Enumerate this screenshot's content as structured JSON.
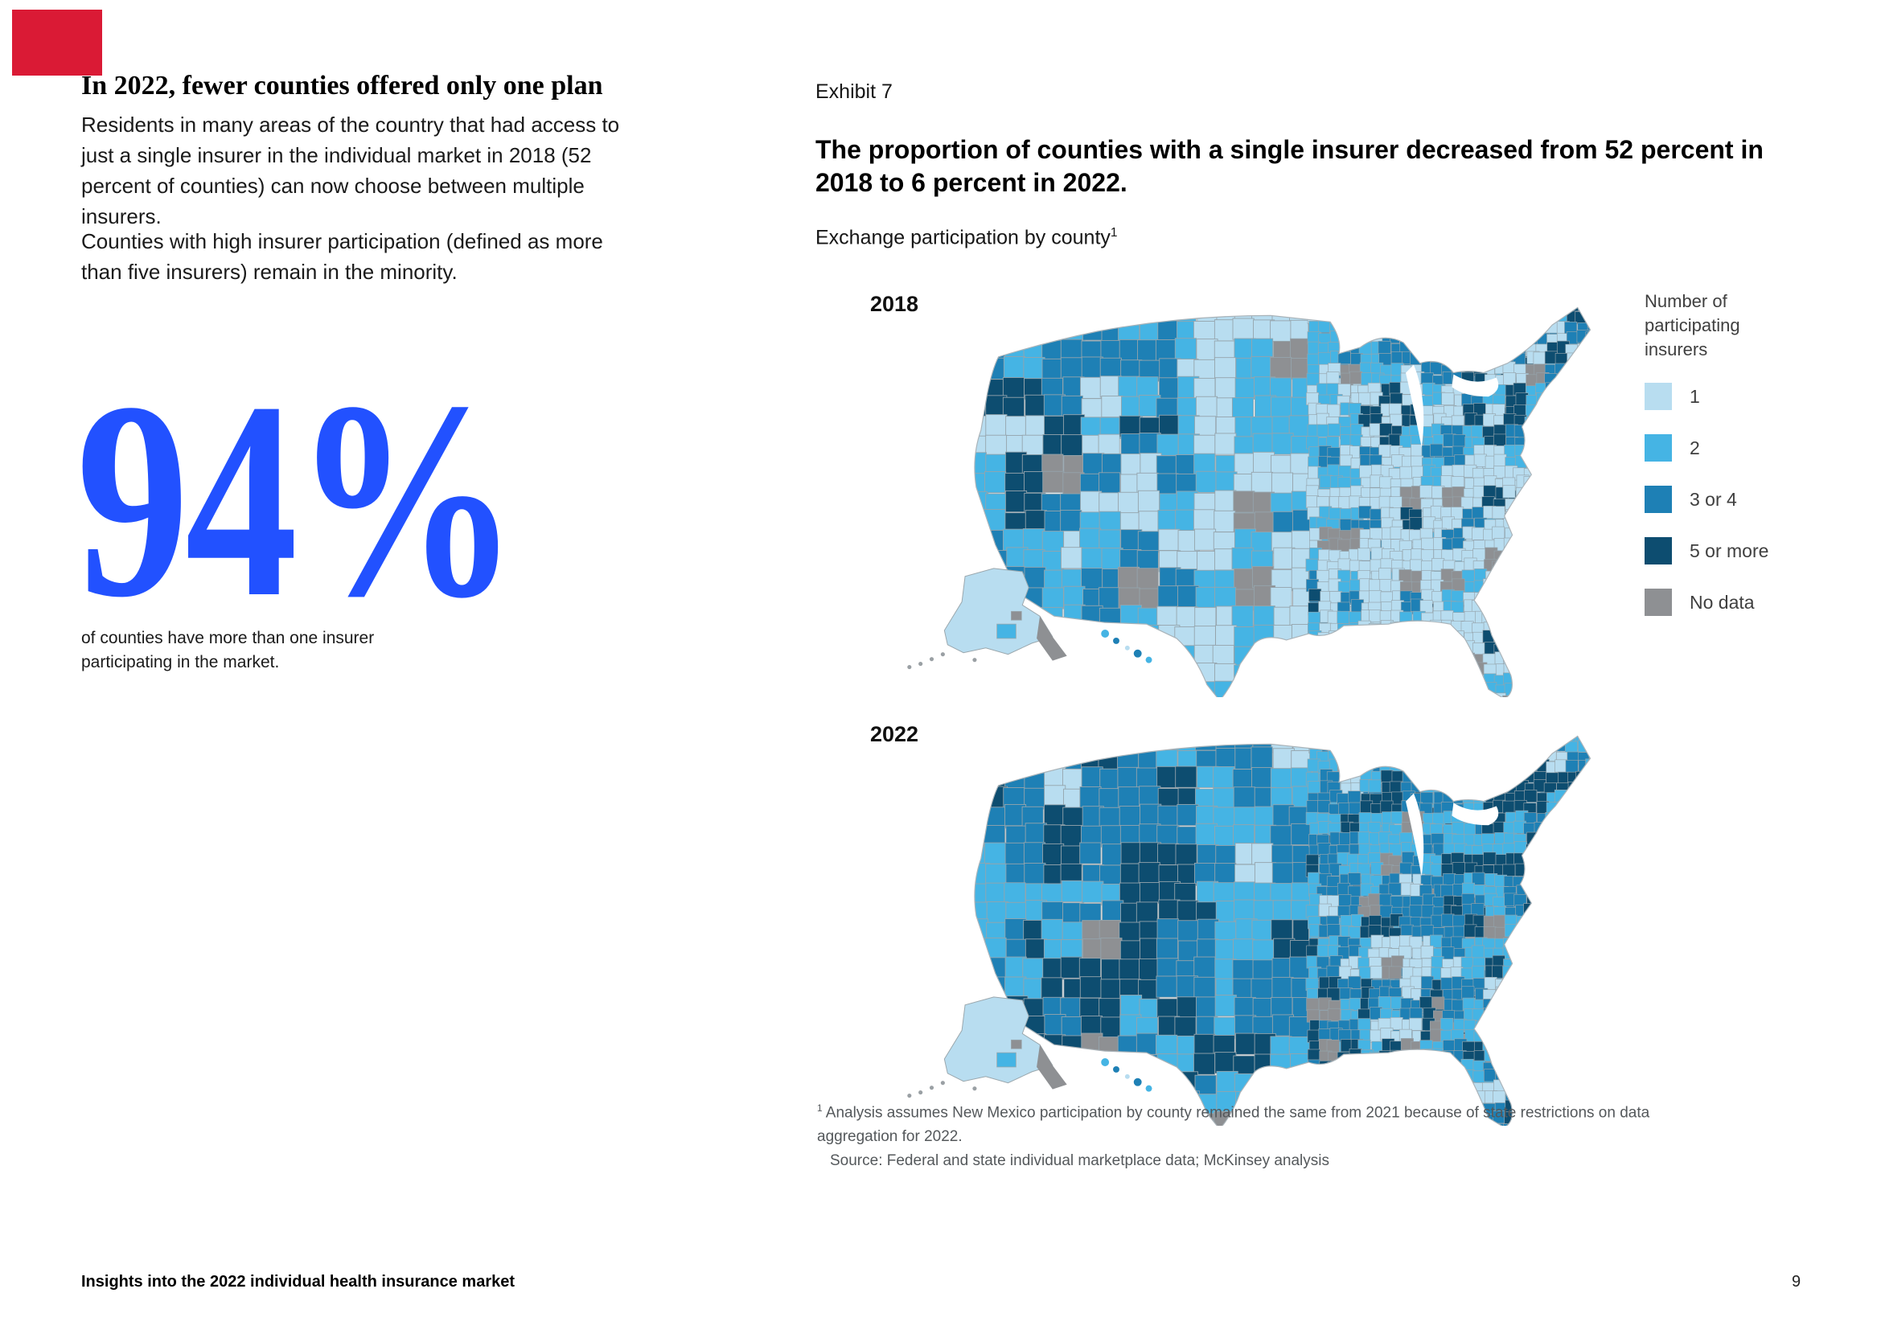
{
  "brand": {
    "red_block_color": "#da1a35"
  },
  "left_column": {
    "headline": "In 2022, fewer counties offered only one plan",
    "paragraphs": [
      "Residents in many areas of the country that had access to just a single insurer in the individual market in 2018 (52 percent of counties) can now choose between multiple insurers.",
      "Counties with high insurer participation (defined as more than five insurers) remain in the minority."
    ],
    "big_stat": {
      "value": "94%",
      "color": "#2251ff",
      "caption": "of counties have more than one insurer participating in the market."
    }
  },
  "exhibit": {
    "label": "Exhibit 7",
    "title": "The proportion of counties with a single insurer decreased from 52 percent in 2018 to 6 percent in 2022.",
    "subtitle": "Exchange participation by county",
    "subtitle_footnote_marker": "1"
  },
  "legend": {
    "title": "Number of participating insurers",
    "items": [
      {
        "label": "1",
        "color": "#b8ddf0"
      },
      {
        "label": "2",
        "color": "#45b4e4"
      },
      {
        "label": "3 or 4",
        "color": "#1e80b5"
      },
      {
        "label": "5 or more",
        "color": "#0d4d70"
      },
      {
        "label": "No data",
        "color": "#8e9093"
      }
    ]
  },
  "chart_data": [
    {
      "type": "choropleth-map",
      "id": "map2018",
      "year_label": "2018",
      "geography": "US counties (including Alaska and Hawaii)",
      "measure": "Number of participating insurers on the individual exchange",
      "classes": [
        "1",
        "2",
        "3 or 4",
        "5 or more",
        "No data"
      ],
      "class_colors": [
        "#b8ddf0",
        "#45b4e4",
        "#1e80b5",
        "#0d4d70",
        "#8e9093"
      ],
      "summary": "In 2018, 52 percent of counties had a single insurer: light blue (1 insurer) dominates the Southeast, Plains and Mountain states; darker blues (3+) concentrate in the Northwest, parts of the West Coast, upper Midwest and Northeast; scattered gray no-data counties.",
      "seed": 7,
      "region_mix": [
        {
          "u": [
            0.78,
            1
          ],
          "v": [
            0,
            0.36
          ],
          "mix": [
            10,
            25,
            30,
            30,
            5
          ]
        },
        {
          "u": [
            0,
            0.3
          ],
          "v": [
            0,
            0.32
          ],
          "mix": [
            8,
            22,
            48,
            17,
            5
          ]
        },
        {
          "u": [
            0,
            0.12
          ],
          "v": [
            0.32,
            1
          ],
          "mix": [
            15,
            40,
            33,
            7,
            5
          ]
        },
        {
          "u": [
            0.12,
            0.34
          ],
          "v": [
            0.55,
            1
          ],
          "mix": [
            28,
            34,
            26,
            7,
            5
          ]
        },
        {
          "u": [
            0.28,
            0.5
          ],
          "v": [
            0.12,
            0.55
          ],
          "mix": [
            58,
            24,
            11,
            2,
            5
          ]
        },
        {
          "u": [
            0.36,
            0.6
          ],
          "v": [
            0.55,
            1
          ],
          "mix": [
            30,
            42,
            20,
            2,
            6
          ]
        },
        {
          "u": [
            0.44,
            0.62
          ],
          "v": [
            0,
            0.55
          ],
          "mix": [
            55,
            28,
            10,
            2,
            5
          ]
        },
        {
          "u": [
            0.62,
            0.8
          ],
          "v": [
            0,
            0.4
          ],
          "mix": [
            28,
            28,
            28,
            10,
            6
          ]
        },
        {
          "u": [
            0.6,
            1
          ],
          "v": [
            0.3,
            1
          ],
          "mix": [
            62,
            12,
            12,
            3,
            11
          ]
        },
        {
          "mix": [
            45,
            28,
            18,
            4,
            5
          ]
        }
      ]
    },
    {
      "type": "choropleth-map",
      "id": "map2022",
      "year_label": "2022",
      "geography": "US counties (including Alaska and Hawaii)",
      "measure": "Number of participating insurers on the individual exchange",
      "classes": [
        "1",
        "2",
        "3 or 4",
        "5 or more",
        "No data"
      ],
      "class_colors": [
        "#b8ddf0",
        "#45b4e4",
        "#1e80b5",
        "#0d4d70",
        "#8e9093"
      ],
      "summary": "In 2022, only 6 percent of counties had a single insurer: most counties show 2 or 3-4 insurers; 5-or-more (dark navy) clusters in the Southwest (Nevada, Arizona, New Mexico), Northwest and Northeast; light (1 insurer) pockets remain around Alabama and the upper Midwest.",
      "seed": 13,
      "region_mix": [
        {
          "u": [
            0,
            0.33
          ],
          "v": [
            0,
            0.35
          ],
          "mix": [
            2,
            18,
            48,
            27,
            5
          ]
        },
        {
          "u": [
            0.08,
            0.38
          ],
          "v": [
            0.45,
            0.92
          ],
          "mix": [
            4,
            14,
            30,
            47,
            5
          ]
        },
        {
          "u": [
            0,
            0.08
          ],
          "v": [
            0.3,
            1
          ],
          "mix": [
            3,
            42,
            35,
            15,
            5
          ]
        },
        {
          "u": [
            0.33,
            0.55
          ],
          "v": [
            0.15,
            0.6
          ],
          "mix": [
            8,
            55,
            27,
            4,
            6
          ]
        },
        {
          "u": [
            0.63,
            0.73
          ],
          "v": [
            0.52,
            0.82
          ],
          "mix": [
            50,
            22,
            18,
            4,
            6
          ]
        },
        {
          "u": [
            0.8,
            1
          ],
          "v": [
            0,
            0.4
          ],
          "mix": [
            4,
            26,
            36,
            29,
            5
          ]
        },
        {
          "u": [
            0.38,
            0.63
          ],
          "v": [
            0.6,
            1
          ],
          "mix": [
            6,
            44,
            30,
            12,
            8
          ]
        },
        {
          "u": [
            0.55,
            1
          ],
          "v": [
            0,
            1
          ],
          "mix": [
            7,
            36,
            34,
            15,
            8
          ]
        },
        {
          "mix": [
            3,
            40,
            38,
            13,
            6
          ]
        }
      ]
    }
  ],
  "footnote": {
    "marker": "1",
    "text": "Analysis assumes New Mexico participation by county remained the same from 2021 because of state restrictions on data aggregation for 2022.",
    "source": "Source: Federal and state individual marketplace data; McKinsey analysis"
  },
  "footer": {
    "title": "Insights into the 2022 individual health insurance market",
    "page_number": "9"
  }
}
